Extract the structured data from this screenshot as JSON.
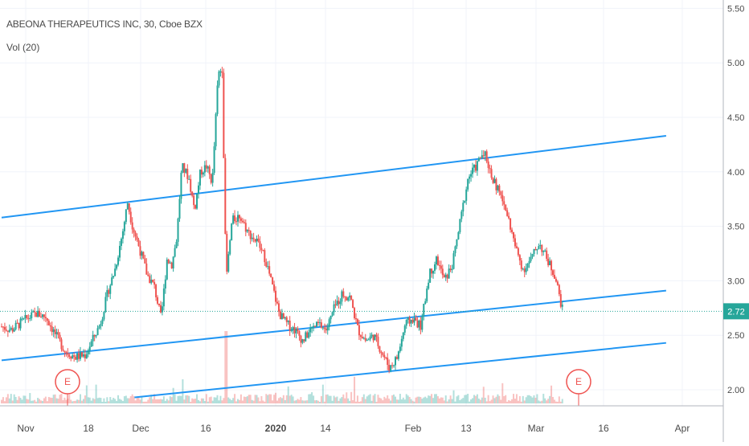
{
  "chart_data": {
    "type": "candlestick",
    "title": "ABEONA THERAPEUTICS INC, 30, Cboe BZX",
    "volume_indicator": "Vol (20)",
    "last_price": 2.72,
    "last_price_label": "2.72",
    "y_axis": {
      "range": [
        1.93,
        5.53
      ],
      "ticks": [
        {
          "value": 2.0,
          "label": "2.00"
        },
        {
          "value": 2.5,
          "label": "2.50"
        },
        {
          "value": 3.0,
          "label": "3.00"
        },
        {
          "value": 3.5,
          "label": "3.50"
        },
        {
          "value": 4.0,
          "label": "4.00"
        },
        {
          "value": 4.5,
          "label": "4.50"
        },
        {
          "value": 5.0,
          "label": "5.00"
        },
        {
          "value": 5.5,
          "label": "5.50"
        }
      ]
    },
    "x_axis": {
      "ticks": [
        {
          "label": "Nov",
          "bold": false
        },
        {
          "label": "18",
          "bold": false
        },
        {
          "label": "Dec",
          "bold": false
        },
        {
          "label": "16",
          "bold": false
        },
        {
          "label": "2020",
          "bold": true
        },
        {
          "label": "14",
          "bold": false
        },
        {
          "label": "Feb",
          "bold": false
        },
        {
          "label": "13",
          "bold": false
        },
        {
          "label": "Mar",
          "bold": false
        },
        {
          "label": "16",
          "bold": false
        },
        {
          "label": "Apr",
          "bold": false
        }
      ]
    },
    "price_path": [
      {
        "t": 0,
        "p": 2.58
      },
      {
        "t": 1,
        "p": 2.55
      },
      {
        "t": 2.5,
        "p": 2.65
      },
      {
        "t": 3.5,
        "p": 2.7
      },
      {
        "t": 4.5,
        "p": 2.67
      },
      {
        "t": 5.5,
        "p": 2.5
      },
      {
        "t": 6.5,
        "p": 2.35
      },
      {
        "t": 7.5,
        "p": 2.3
      },
      {
        "t": 8.5,
        "p": 2.32
      },
      {
        "t": 9.2,
        "p": 2.45
      },
      {
        "t": 10,
        "p": 2.6
      },
      {
        "t": 10.8,
        "p": 2.9
      },
      {
        "t": 11.5,
        "p": 3.1
      },
      {
        "t": 12.3,
        "p": 3.45
      },
      {
        "t": 12.8,
        "p": 3.72
      },
      {
        "t": 13.3,
        "p": 3.5
      },
      {
        "t": 14,
        "p": 3.3
      },
      {
        "t": 14.8,
        "p": 3.05
      },
      {
        "t": 15.5,
        "p": 2.95
      },
      {
        "t": 16.2,
        "p": 2.65
      },
      {
        "t": 16.8,
        "p": 3.2
      },
      {
        "t": 17.3,
        "p": 3.15
      },
      {
        "t": 17.8,
        "p": 3.4
      },
      {
        "t": 18.3,
        "p": 4.05
      },
      {
        "t": 19,
        "p": 3.95
      },
      {
        "t": 19.6,
        "p": 3.65
      },
      {
        "t": 20.2,
        "p": 4.0
      },
      {
        "t": 20.8,
        "p": 4.05
      },
      {
        "t": 21.4,
        "p": 3.9
      },
      {
        "t": 22.0,
        "p": 4.9
      },
      {
        "t": 22.4,
        "p": 4.95
      },
      {
        "t": 22.8,
        "p": 3.0
      },
      {
        "t": 23.4,
        "p": 3.55
      },
      {
        "t": 24.2,
        "p": 3.6
      },
      {
        "t": 25,
        "p": 3.45
      },
      {
        "t": 26,
        "p": 3.35
      },
      {
        "t": 26.8,
        "p": 3.2
      },
      {
        "t": 27.5,
        "p": 2.95
      },
      {
        "t": 28.2,
        "p": 2.7
      },
      {
        "t": 29,
        "p": 2.6
      },
      {
        "t": 29.8,
        "p": 2.55
      },
      {
        "t": 30.6,
        "p": 2.45
      },
      {
        "t": 31.4,
        "p": 2.55
      },
      {
        "t": 32.2,
        "p": 2.6
      },
      {
        "t": 33,
        "p": 2.55
      },
      {
        "t": 33.8,
        "p": 2.75
      },
      {
        "t": 34.6,
        "p": 2.88
      },
      {
        "t": 35.4,
        "p": 2.85
      },
      {
        "t": 36.2,
        "p": 2.55
      },
      {
        "t": 37,
        "p": 2.45
      },
      {
        "t": 37.8,
        "p": 2.5
      },
      {
        "t": 38.6,
        "p": 2.35
      },
      {
        "t": 39.4,
        "p": 2.2
      },
      {
        "t": 40.2,
        "p": 2.3
      },
      {
        "t": 41,
        "p": 2.6
      },
      {
        "t": 41.8,
        "p": 2.65
      },
      {
        "t": 42.6,
        "p": 2.58
      },
      {
        "t": 43.4,
        "p": 3.05
      },
      {
        "t": 44.2,
        "p": 3.2
      },
      {
        "t": 45,
        "p": 3.0
      },
      {
        "t": 45.8,
        "p": 3.15
      },
      {
        "t": 46.6,
        "p": 3.55
      },
      {
        "t": 47.4,
        "p": 3.95
      },
      {
        "t": 48.2,
        "p": 4.05
      },
      {
        "t": 49,
        "p": 4.2
      },
      {
        "t": 49.8,
        "p": 3.95
      },
      {
        "t": 50.6,
        "p": 3.8
      },
      {
        "t": 51.4,
        "p": 3.6
      },
      {
        "t": 52.2,
        "p": 3.3
      },
      {
        "t": 53,
        "p": 3.1
      },
      {
        "t": 53.8,
        "p": 3.2
      },
      {
        "t": 54.6,
        "p": 3.35
      },
      {
        "t": 55.4,
        "p": 3.2
      },
      {
        "t": 56.2,
        "p": 3.05
      },
      {
        "t": 57,
        "p": 2.72
      }
    ],
    "trend_lines": [
      {
        "name": "upper",
        "x1": 0,
        "y1": 3.58,
        "x2": 67.5,
        "y2": 4.33
      },
      {
        "name": "middle",
        "x1": 0,
        "y1": 2.27,
        "x2": 67.5,
        "y2": 2.91
      },
      {
        "name": "lower",
        "x1": 13.5,
        "y1": 1.93,
        "x2": 67.5,
        "y2": 2.43
      }
    ],
    "earnings_markers": [
      {
        "label": "E"
      },
      {
        "label": "E"
      }
    ],
    "colors": {
      "up": "#26a69a",
      "down": "#ef5350",
      "trend_line": "#2196f3",
      "last_price": "#26a69a",
      "earnings": "#ef5350",
      "grid": "#f0f3fa",
      "axis_text": "#4a4a4a"
    }
  }
}
